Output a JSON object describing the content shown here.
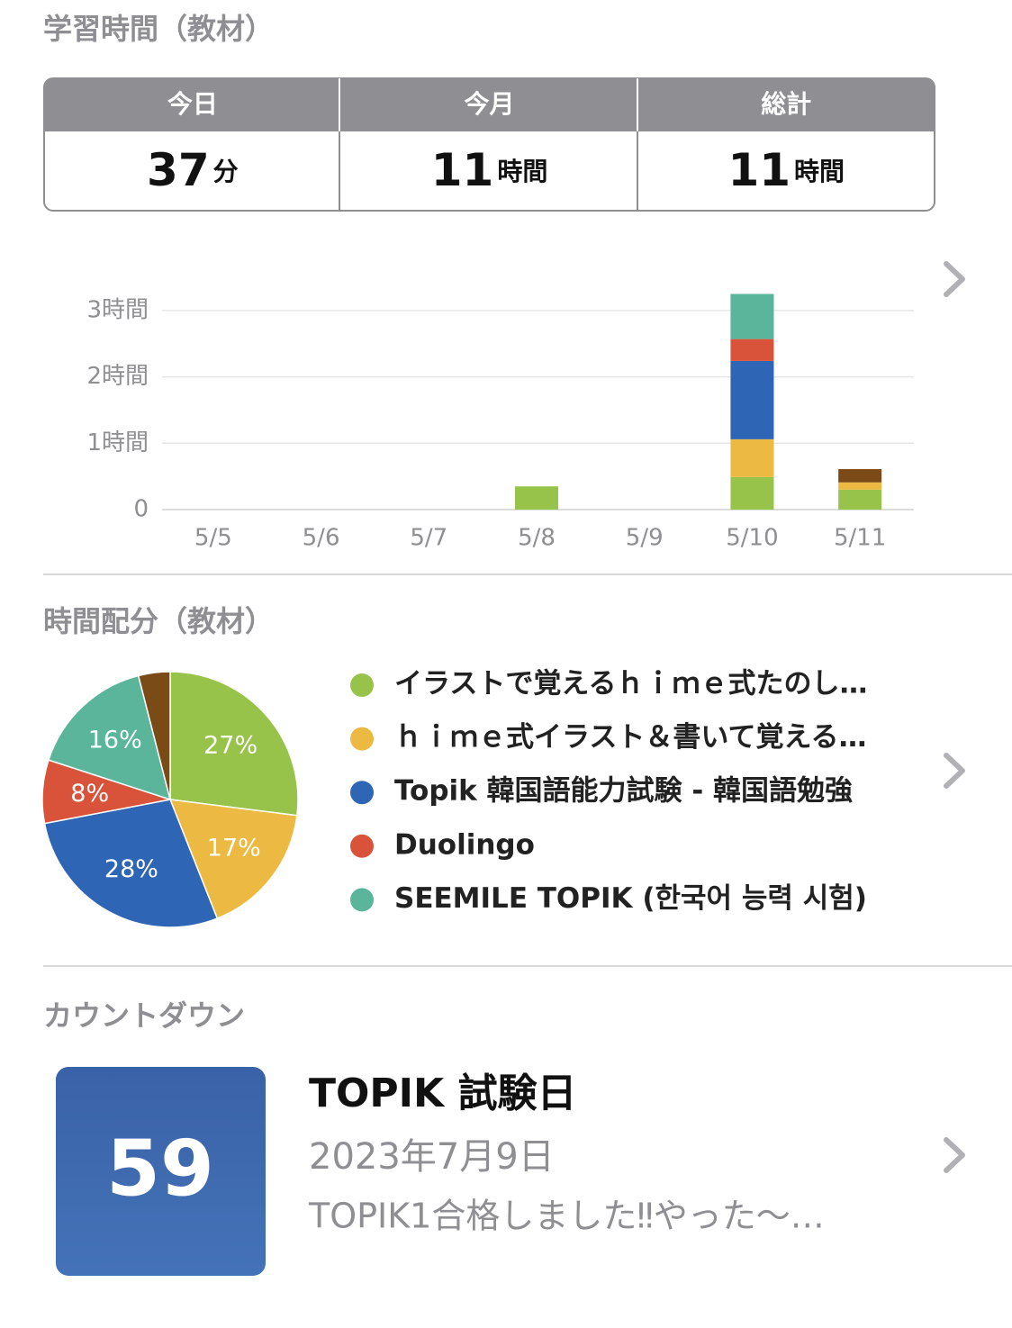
{
  "header": {
    "title": "学習時間（教材）"
  },
  "summary": [
    {
      "label": "今日",
      "value": 37,
      "unit": "分"
    },
    {
      "label": "今月",
      "value": 11,
      "unit": "時間"
    },
    {
      "label": "総計",
      "value": 11,
      "unit": "時間"
    }
  ],
  "chart_data": [
    {
      "type": "bar",
      "stacked": true,
      "categories": [
        "5/5",
        "5/6",
        "5/7",
        "5/8",
        "5/9",
        "5/10",
        "5/11"
      ],
      "series": [
        {
          "color": "#97c34a",
          "values": [
            0,
            0,
            0,
            0.35,
            0,
            0.49,
            0.3
          ]
        },
        {
          "color": "#ecb942",
          "values": [
            0,
            0,
            0,
            0,
            0,
            0.57,
            0.11
          ]
        },
        {
          "color": "#2f65b5",
          "values": [
            0,
            0,
            0,
            0,
            0,
            1.18,
            0
          ]
        },
        {
          "color": "#d9533a",
          "values": [
            0,
            0,
            0,
            0,
            0,
            0.33,
            0
          ]
        },
        {
          "color": "#5bb59a",
          "values": [
            0,
            0,
            0,
            0,
            0,
            0.68,
            0
          ]
        },
        {
          "color": "#7a4a17",
          "values": [
            0,
            0,
            0,
            0,
            0,
            0,
            0.2
          ]
        }
      ],
      "ylim": [
        0,
        3.3
      ],
      "yticks": [
        0,
        {
          "value": 1,
          "label": "1時間"
        },
        {
          "value": 2,
          "label": "2時間"
        },
        {
          "value": 3,
          "label": "3時間"
        }
      ],
      "grid": true
    },
    {
      "type": "pie",
      "title": "時間配分（教材）",
      "categories": [
        "イラストで覚えるｈｉｍｅ式たのし…",
        "ｈｉｍｅ式イラスト＆書いて覚える…",
        "Topik 韓国語能力試験 - 韓国語勉強",
        "Duolingo",
        "SEEMILE TOPIK (한국어 능력 시험)",
        null
      ],
      "values": [
        27,
        17,
        28,
        8,
        16,
        4
      ],
      "value_labels": [
        "27%",
        "17%",
        "28%",
        "8%",
        "16%",
        null
      ],
      "colors": [
        "#97c34a",
        "#ecb942",
        "#2f65b5",
        "#d9533a",
        "#5bb59a",
        "#7a4a17"
      ]
    }
  ],
  "countdown": {
    "title": "カウントダウン",
    "days": 59,
    "name": "TOPIK 試験日",
    "date": "2023年7月9日",
    "note": "TOPIK1合格しました‼やった〜…"
  }
}
